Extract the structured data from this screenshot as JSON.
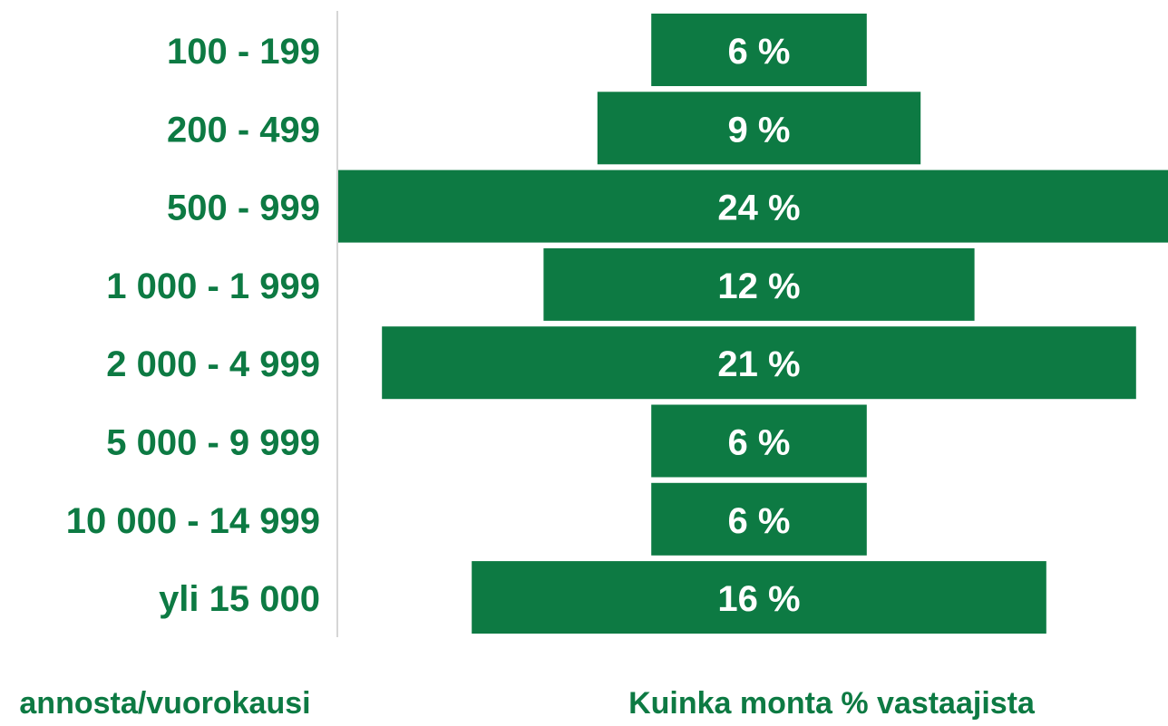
{
  "chart_data": {
    "type": "funnel",
    "categories": [
      "100 - 199",
      "200 - 499",
      "500 - 999",
      "1 000 - 1 999",
      "2 000 - 4 999",
      "5 000 - 9 999",
      "10 000 - 14 999",
      "yli 15 000"
    ],
    "values": [
      6,
      9,
      24,
      12,
      21,
      6,
      6,
      16
    ],
    "value_labels": [
      "6 %",
      "9 %",
      "24 %",
      "12 %",
      "21 %",
      "6 %",
      "6 %",
      "16 %"
    ],
    "color": "#0d7a43",
    "y_label": "annosta/vuorokausi",
    "x_label": "Kuinka monta % vastaajista"
  }
}
